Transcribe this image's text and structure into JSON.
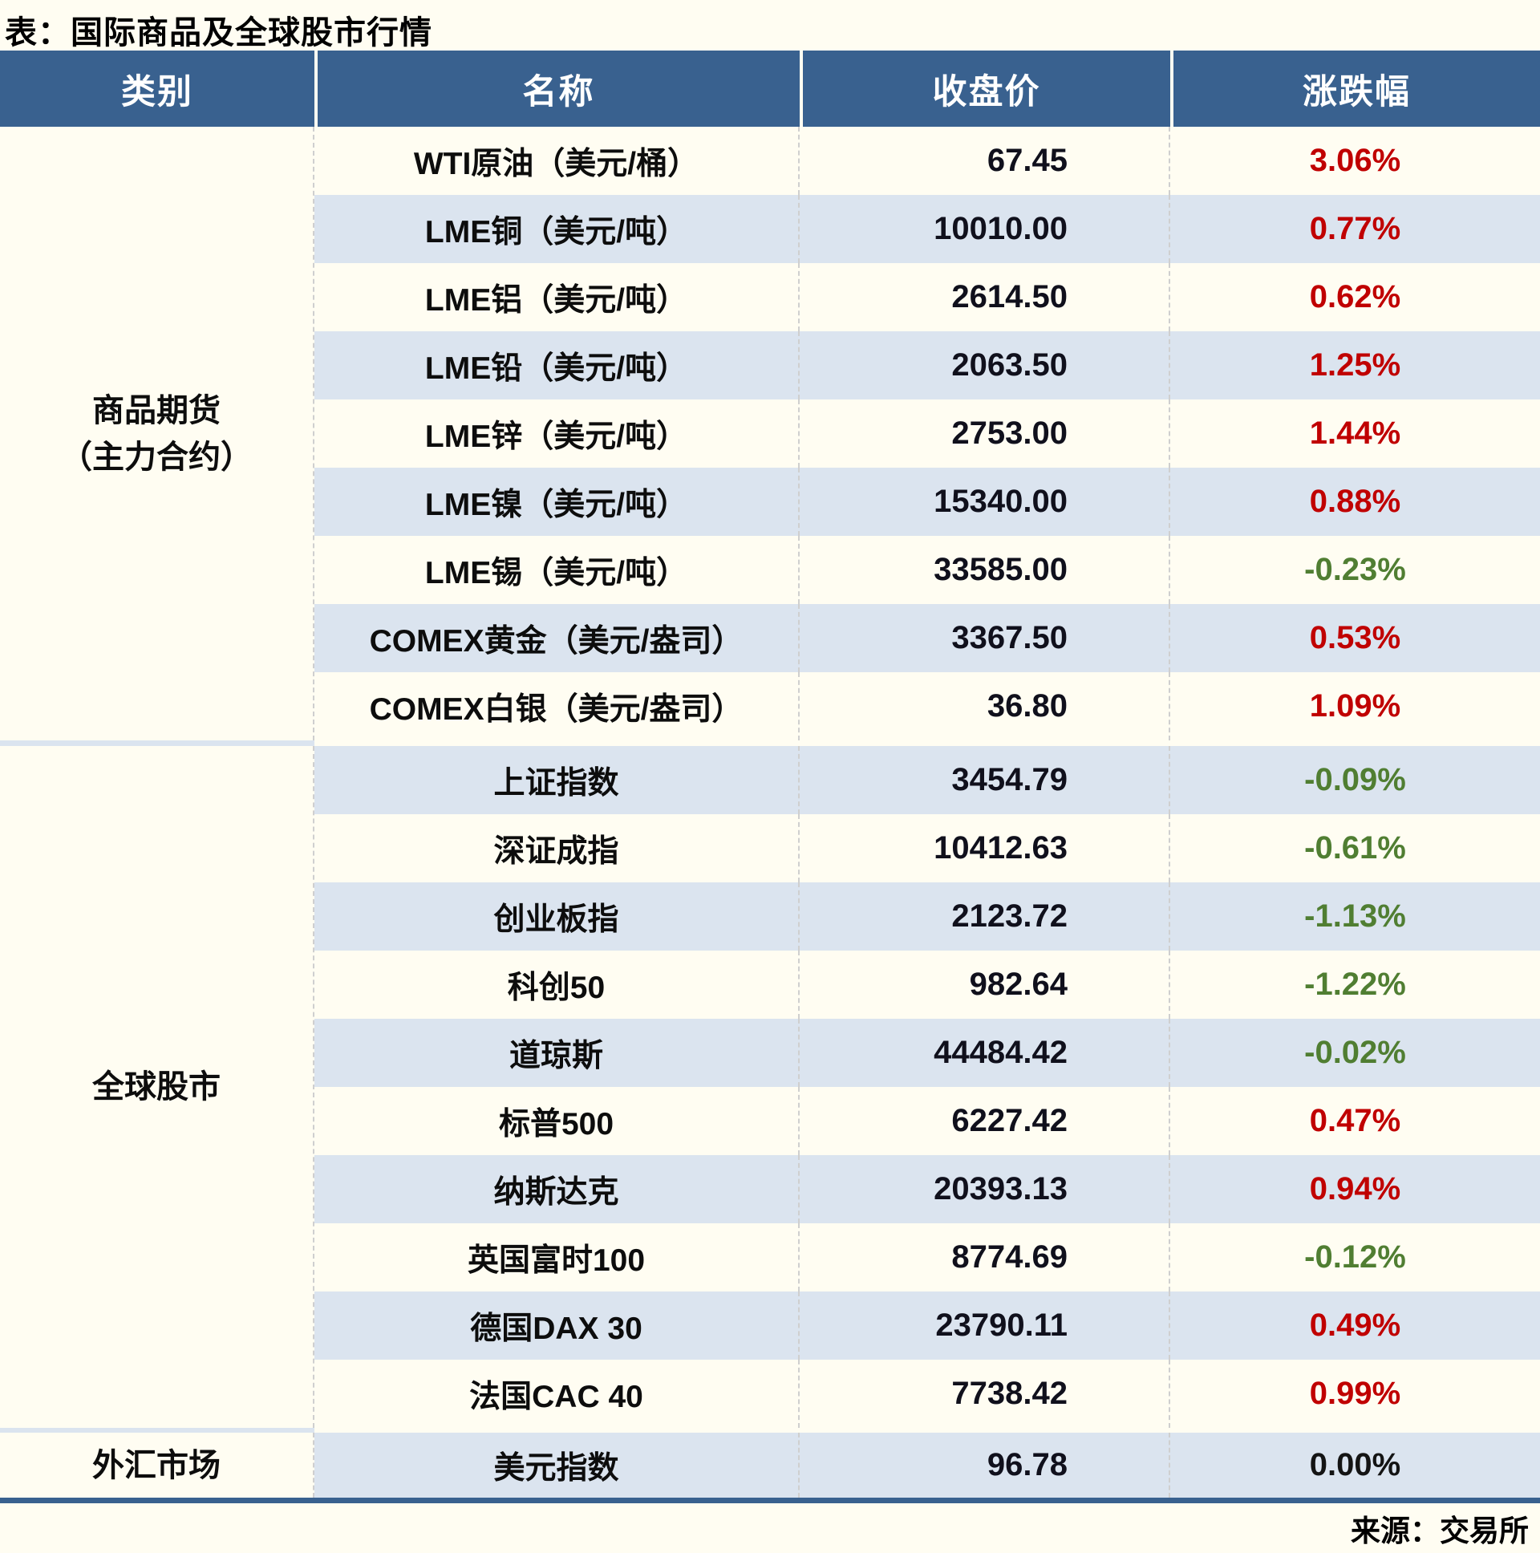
{
  "title": "表：国际商品及全球股市行情",
  "source": "来源：交易所",
  "columns": {
    "category": "类别",
    "name": "名称",
    "close": "收盘价",
    "change": "涨跌幅"
  },
  "colors": {
    "header_bg": "#39618F",
    "stripe_bg": "#DBE4EF",
    "page_bg": "#FFFDF2",
    "up_red": "#C00000",
    "down_green": "#507E32",
    "flat_black": "#141414"
  },
  "sections": [
    {
      "category": "商品期货",
      "category_sub": "（主力合约）",
      "rows": [
        {
          "name": "WTI原油（美元/桶）",
          "close": "67.45",
          "change": "3.06%",
          "trend": "up"
        },
        {
          "name": "LME铜（美元/吨）",
          "close": "10010.00",
          "change": "0.77%",
          "trend": "up"
        },
        {
          "name": "LME铝（美元/吨）",
          "close": "2614.50",
          "change": "0.62%",
          "trend": "up"
        },
        {
          "name": "LME铅（美元/吨）",
          "close": "2063.50",
          "change": "1.25%",
          "trend": "up"
        },
        {
          "name": "LME锌（美元/吨）",
          "close": "2753.00",
          "change": "1.44%",
          "trend": "up"
        },
        {
          "name": "LME镍（美元/吨）",
          "close": "15340.00",
          "change": "0.88%",
          "trend": "up"
        },
        {
          "name": "LME锡（美元/吨）",
          "close": "33585.00",
          "change": "-0.23%",
          "trend": "down"
        },
        {
          "name": "COMEX黄金（美元/盎司）",
          "close": "3367.50",
          "change": "0.53%",
          "trend": "up"
        },
        {
          "name": "COMEX白银（美元/盎司）",
          "close": "36.80",
          "change": "1.09%",
          "trend": "up"
        }
      ]
    },
    {
      "category": "全球股市",
      "category_sub": "",
      "rows": [
        {
          "name": "上证指数",
          "close": "3454.79",
          "change": "-0.09%",
          "trend": "down"
        },
        {
          "name": "深证成指",
          "close": "10412.63",
          "change": "-0.61%",
          "trend": "down"
        },
        {
          "name": "创业板指",
          "close": "2123.72",
          "change": "-1.13%",
          "trend": "down"
        },
        {
          "name": "科创50",
          "close": "982.64",
          "change": "-1.22%",
          "trend": "down"
        },
        {
          "name": "道琼斯",
          "close": "44484.42",
          "change": "-0.02%",
          "trend": "down"
        },
        {
          "name": "标普500",
          "close": "6227.42",
          "change": "0.47%",
          "trend": "up"
        },
        {
          "name": "纳斯达克",
          "close": "20393.13",
          "change": "0.94%",
          "trend": "up"
        },
        {
          "name": "英国富时100",
          "close": "8774.69",
          "change": "-0.12%",
          "trend": "down"
        },
        {
          "name": "德国DAX 30",
          "close": "23790.11",
          "change": "0.49%",
          "trend": "up"
        },
        {
          "name": "法国CAC 40",
          "close": "7738.42",
          "change": "0.99%",
          "trend": "up"
        }
      ]
    },
    {
      "category": "外汇市场",
      "category_sub": "",
      "rows": [
        {
          "name": "美元指数",
          "close": "96.78",
          "change": "0.00%",
          "trend": "flat"
        }
      ]
    }
  ]
}
